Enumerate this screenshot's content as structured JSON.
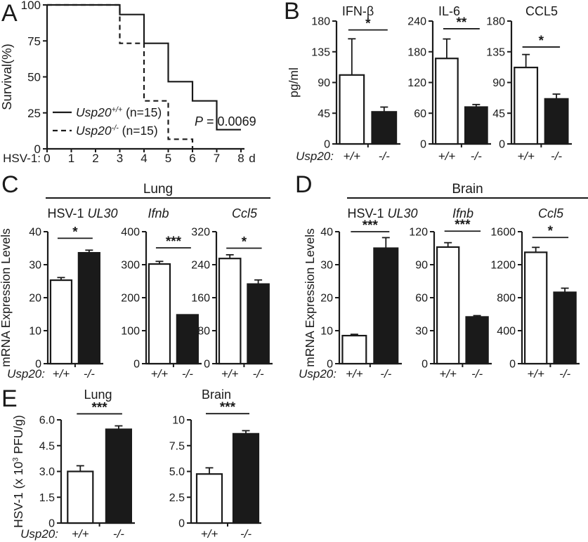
{
  "colors": {
    "ink": "#1a1a1a",
    "bg": "#ffffff",
    "bar_wt": "#ffffff",
    "bar_ko": "#1a1a1a"
  },
  "panel_labels": {
    "a": "A",
    "b": "B",
    "c": "C",
    "d": "D",
    "e": "E"
  },
  "sections": {
    "lung": "Lung",
    "brain": "Brain"
  },
  "genotype_prefix": "Usp20:",
  "chart_data": [
    {
      "name": "survival-curve",
      "type": "line",
      "title": "",
      "ylabel": "Survival(%)",
      "plot": {
        "l": 67,
        "t": 7,
        "r": 343,
        "b": 212
      },
      "axis_x_end": 348,
      "xlim": [
        0,
        8
      ],
      "ylim": [
        0,
        100
      ],
      "xtick_vals": [
        0,
        1,
        2,
        3,
        4,
        5,
        6,
        7,
        8
      ],
      "xtick_labels": [
        "0",
        "1",
        "2",
        "3",
        "4",
        "5",
        "6",
        "7",
        "8"
      ],
      "ytick_vals": [
        0,
        25,
        50,
        75,
        100
      ],
      "ytick_labels": [
        "0",
        "25",
        "50",
        "75",
        "100"
      ],
      "x_prefix": "HSV-1:",
      "x_suffix": "d",
      "xlab_y": 231,
      "ylabel_runs": [
        {
          "t": "Survival(%)"
        }
      ],
      "ylabel_x": 16,
      "series": [
        {
          "label": "Usp20+/+ (n=15)",
          "dash": false,
          "x": [
            0,
            3,
            3,
            4,
            4,
            5,
            5,
            6,
            6,
            7,
            7,
            8
          ],
          "y": [
            100,
            100,
            93.3,
            93.3,
            73.3,
            73.3,
            46.7,
            46.7,
            33.3,
            33.3,
            13.3,
            13.3
          ]
        },
        {
          "label": "Usp20-/- (n=15)",
          "dash": true,
          "x": [
            0,
            3,
            3,
            4,
            4,
            5,
            5,
            6,
            6
          ],
          "y": [
            100,
            100,
            73.3,
            73.3,
            33.3,
            33.3,
            6.7,
            6.7,
            0
          ]
        }
      ],
      "legend": {
        "x1": 75,
        "x2": 102,
        "tx": 108,
        "rows": [
          160,
          186
        ],
        "entries": [
          {
            "dash": false,
            "runs": [
              {
                "t": "Usp20",
                "i": 1
              },
              {
                "t": "+/+",
                "i": 1,
                "sup": 1
              },
              {
                "t": " (n=15)"
              }
            ]
          },
          {
            "dash": true,
            "runs": [
              {
                "t": "Usp20",
                "i": 1
              },
              {
                "t": "-/-",
                "i": 1,
                "sup": 1
              },
              {
                "t": " (n=15)"
              }
            ]
          }
        ]
      },
      "annotation": {
        "x": 277,
        "y": 179,
        "runs": [
          {
            "t": "P",
            "i": 1
          },
          {
            "t": " = 0.0069"
          }
        ]
      }
    },
    {
      "name": "serum-IFN-beta",
      "type": "bar",
      "panel": "B",
      "plot": {
        "l": 71,
        "t": 24,
        "r": 162,
        "b": 199
      },
      "title_runs": [
        {
          "t": "IFN-β"
        }
      ],
      "title_y": 16,
      "title_dx": -15,
      "ylabel_runs": [
        {
          "t": "pg/ml"
        }
      ],
      "ylabel_x": 16,
      "ymax": 180,
      "ytick_vals": [
        0,
        45,
        90,
        135,
        180
      ],
      "ytick_labels": [
        "0",
        "45",
        "90",
        "135",
        "180"
      ],
      "categories": [
        "+/+",
        "-/-"
      ],
      "prefix": "Usp20:",
      "xlab_y": 222,
      "values": [
        101,
        47
      ],
      "errors": [
        53,
        7
      ],
      "sig": {
        "label": "*",
        "y": 167
      }
    },
    {
      "name": "serum-IL-6",
      "type": "bar",
      "panel": "B",
      "plot": {
        "l": 54,
        "t": 24,
        "r": 137,
        "b": 199
      },
      "title_runs": [
        {
          "t": "IL-6"
        }
      ],
      "title_y": 16,
      "title_dx": -18,
      "ymax": 240,
      "ytick_vals": [
        0,
        60,
        120,
        180,
        240
      ],
      "ytick_labels": [
        "0",
        "60",
        "120",
        "180",
        "240"
      ],
      "categories": [
        "+/+",
        "-/-"
      ],
      "xlab_y": 222,
      "values": [
        167,
        72
      ],
      "errors": [
        38,
        5
      ],
      "sig": {
        "label": "**",
        "y": 225
      }
    },
    {
      "name": "serum-CCL5",
      "type": "bar",
      "panel": "B",
      "plot": {
        "l": 54,
        "t": 24,
        "r": 140,
        "b": 199
      },
      "title_runs": [
        {
          "t": "CCL5"
        }
      ],
      "title_y": 16,
      "ymax": 180,
      "ytick_vals": [
        0,
        45,
        90,
        135,
        180
      ],
      "ytick_labels": [
        "0",
        "45",
        "90",
        "135",
        "180"
      ],
      "categories": [
        "+/+",
        "-/-"
      ],
      "xlab_y": 222,
      "values": [
        112,
        66
      ],
      "errors": [
        19,
        7
      ],
      "sig": {
        "label": "*",
        "y": 142
      }
    },
    {
      "name": "lung-HSV1-UL30-mRNA",
      "type": "bar",
      "panel": "C",
      "plot": {
        "l": 68,
        "t": 38,
        "r": 147,
        "b": 226
      },
      "title_runs": [
        {
          "t": "HSV-1 "
        },
        {
          "t": "UL30",
          "i": 1
        }
      ],
      "title_y": 18,
      "title_dx": 10,
      "ylabel_runs": [
        {
          "t": "mRNA Expression Levels"
        }
      ],
      "ylabel_x": 14,
      "ymax": 40,
      "ytick_vals": [
        0,
        10,
        20,
        30,
        40
      ],
      "ytick_labels": [
        "0",
        "10",
        "20",
        "30",
        "40"
      ],
      "categories": [
        "+/+",
        "-/-"
      ],
      "prefix": "Usp20:",
      "xlab_y": 246,
      "values": [
        25.3,
        33.6
      ],
      "errors": [
        0.8,
        0.8
      ],
      "sig": {
        "label": "*",
        "y": 38
      }
    },
    {
      "name": "lung-Ifnb-mRNA",
      "type": "bar",
      "panel": "C",
      "plot": {
        "l": 68,
        "t": 38,
        "r": 147,
        "b": 226
      },
      "title_runs": [
        {
          "t": "Ifnb",
          "i": 1
        }
      ],
      "title_y": 18,
      "title_dx": -22,
      "ymax": 400,
      "ytick_vals": [
        0,
        100,
        200,
        300,
        400
      ],
      "ytick_labels": [
        "0",
        "100",
        "200",
        "300",
        "400"
      ],
      "categories": [
        "+/+",
        "-/-"
      ],
      "xlab_y": 246,
      "values": [
        302,
        148
      ],
      "errors": [
        8,
        0
      ],
      "sig": {
        "label": "***",
        "y": 351
      }
    },
    {
      "name": "lung-Ccl5-mRNA",
      "type": "bar",
      "panel": "C",
      "plot": {
        "l": 68,
        "t": 38,
        "r": 148,
        "b": 226
      },
      "title_runs": [
        {
          "t": "Ccl5",
          "i": 1
        }
      ],
      "title_y": 18,
      "ymax": 320,
      "ytick_vals": [
        0,
        80,
        160,
        240,
        320
      ],
      "ytick_labels": [
        "0",
        "80",
        "160",
        "240",
        "320"
      ],
      "categories": [
        "+/+",
        "-/-"
      ],
      "xlab_y": 246,
      "values": [
        255,
        193
      ],
      "errors": [
        9,
        10
      ],
      "sig": {
        "label": "*",
        "y": 280
      }
    },
    {
      "name": "brain-HSV1-UL30-mRNA",
      "type": "bar",
      "panel": "D",
      "plot": {
        "l": 68,
        "t": 38,
        "r": 157,
        "b": 226
      },
      "title_runs": [
        {
          "t": "HSV-1 "
        },
        {
          "t": "UL30",
          "i": 1
        }
      ],
      "title_y": 18,
      "title_dx": 17,
      "ylabel_runs": [
        {
          "t": "mRNA Expression Levels"
        }
      ],
      "ylabel_x": 32,
      "ymax": 40,
      "ytick_vals": [
        0,
        10,
        20,
        30,
        40
      ],
      "ytick_labels": [
        "0",
        "10",
        "20",
        "30",
        "40"
      ],
      "categories": [
        "+/+",
        "-/-"
      ],
      "prefix": "Usp20:",
      "xlab_y": 246,
      "values": [
        8.5,
        35
      ],
      "errors": [
        0.4,
        3.2
      ],
      "sig": {
        "label": "***",
        "y": 40
      }
    },
    {
      "name": "brain-Ifnb-mRNA",
      "type": "bar",
      "panel": "D",
      "plot": {
        "l": 68,
        "t": 38,
        "r": 150,
        "b": 226
      },
      "title_runs": [
        {
          "t": "Ifnb",
          "i": 1
        }
      ],
      "title_y": 18,
      "ymax": 120,
      "ytick_vals": [
        0,
        30,
        60,
        90,
        120
      ],
      "ytick_labels": [
        "0",
        "30",
        "60",
        "90",
        "120"
      ],
      "categories": [
        "+/+",
        "-/-"
      ],
      "xlab_y": 246,
      "values": [
        106,
        42.5
      ],
      "errors": [
        4,
        1.2
      ],
      "sig": {
        "label": "***",
        "y": 120.5
      }
    },
    {
      "name": "brain-Ccl5-mRNA",
      "type": "bar",
      "panel": "D",
      "plot": {
        "l": 68,
        "t": 38,
        "r": 150,
        "b": 226
      },
      "title_runs": [
        {
          "t": "Ccl5",
          "i": 1
        }
      ],
      "title_y": 18,
      "ymax": 1600,
      "ytick_vals": [
        0,
        400,
        800,
        1200,
        1600
      ],
      "ytick_labels": [
        "0",
        "400",
        "800",
        "1200",
        "1600"
      ],
      "categories": [
        "+/+",
        "-/-"
      ],
      "xlab_y": 246,
      "values": [
        1350,
        865
      ],
      "errors": [
        60,
        50
      ],
      "sig": {
        "label": "*",
        "y": 1530
      }
    },
    {
      "name": "lung-viral-titer",
      "type": "bar",
      "panel": "E",
      "plot": {
        "l": 69,
        "t": 52,
        "r": 174,
        "b": 199
      },
      "title_runs": [
        {
          "t": "Lung"
        }
      ],
      "title_y": 22,
      "ylabel_runs": [
        {
          "t": "HSV-1 (x 10"
        },
        {
          "t": "3",
          "sup": 1
        },
        {
          "t": " PFU/g)"
        }
      ],
      "ylabel_x": 14,
      "ymax": 6,
      "ytick_vals": [
        0,
        1.5,
        3,
        4.5,
        6
      ],
      "ytick_labels": [
        "0",
        "1.5",
        "3.0",
        "4.5",
        "6.0"
      ],
      "categories": [
        "+/+",
        "-/-"
      ],
      "prefix": "Usp20:",
      "xlab_y": 220,
      "bar_pos": [
        0.26,
        0.78
      ],
      "values": [
        3.0,
        5.45
      ],
      "errors": [
        0.33,
        0.2
      ],
      "sig": {
        "label": "***",
        "y": 6.35
      }
    },
    {
      "name": "brain-viral-titer",
      "type": "bar",
      "panel": "E",
      "plot": {
        "l": 69,
        "t": 52,
        "r": 169,
        "b": 199
      },
      "title_runs": [
        {
          "t": "Brain"
        }
      ],
      "title_y": 22,
      "title_dx": -14,
      "ymax": 10,
      "ytick_vals": [
        0,
        2.5,
        5,
        7.5,
        10
      ],
      "ytick_labels": [
        "0",
        "2.5",
        "5.0",
        "7.5",
        "10"
      ],
      "categories": [
        "+/+",
        "-/-"
      ],
      "xlab_y": 220,
      "bar_pos": [
        0.26,
        0.78
      ],
      "values": [
        4.75,
        8.65
      ],
      "errors": [
        0.6,
        0.3
      ],
      "sig": {
        "label": "***",
        "y": 10.6
      }
    }
  ]
}
